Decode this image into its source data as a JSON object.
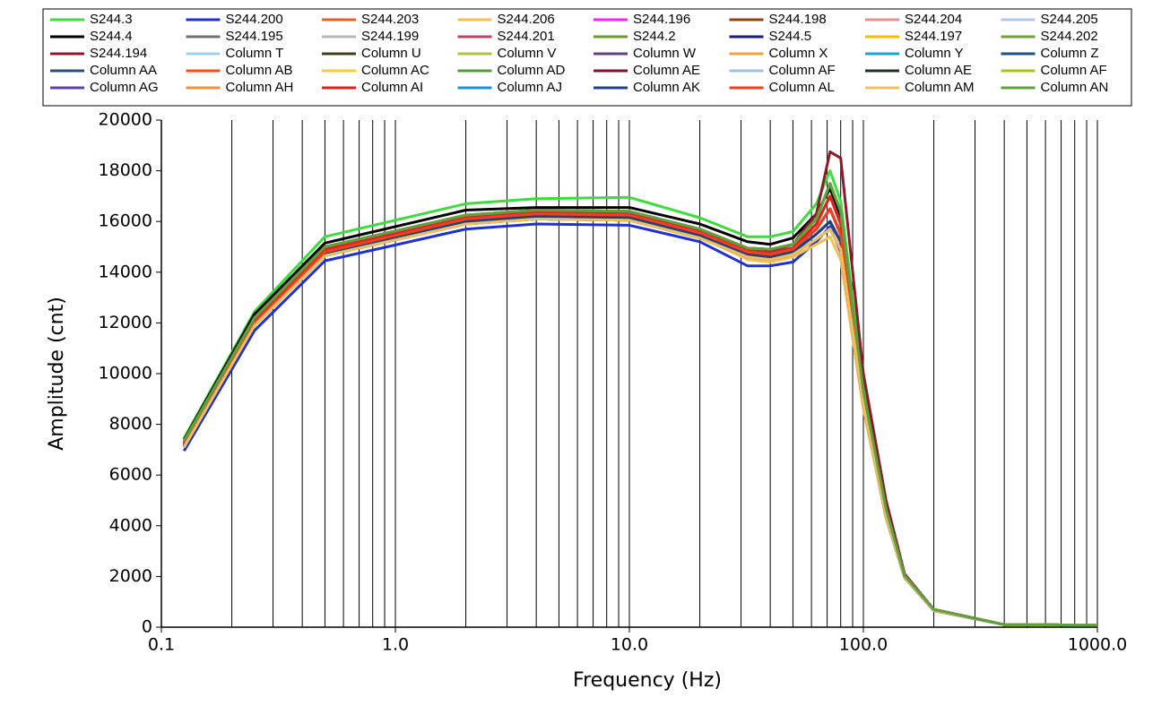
{
  "chart_data": {
    "type": "line",
    "x_label": "Frequency (Hz)",
    "y_label": "Amplitude  (cnt)",
    "log_x": true,
    "grid": true,
    "xlim": [
      0.1,
      1000
    ],
    "xticks": [
      0.1,
      {
        "value": 1,
        "label": "1.0"
      },
      {
        "value": 10,
        "label": "10.0"
      },
      {
        "value": 100,
        "label": "100.0"
      },
      {
        "value": 1000,
        "label": "1000.0"
      }
    ],
    "xgrid_minor": [
      0.2,
      0.3,
      0.4,
      0.5,
      0.6,
      0.7,
      0.8,
      0.9,
      2,
      3,
      4,
      5,
      6,
      7,
      8,
      9,
      20,
      30,
      40,
      50,
      60,
      70,
      80,
      90,
      200,
      300,
      400,
      500,
      600,
      700,
      800,
      900
    ],
    "ylim": [
      0,
      20000
    ],
    "yticks": [
      0,
      2000,
      4000,
      6000,
      8000,
      10000,
      12000,
      14000,
      16000,
      18000,
      20000
    ],
    "legend": "top",
    "x": [
      0.125,
      0.25,
      0.5,
      2,
      4,
      10,
      20,
      32,
      40,
      50,
      63,
      72,
      80,
      100,
      125,
      150,
      200,
      400,
      1000
    ],
    "series": [
      {
        "name": "S244.3",
        "color": "#3cdc3c",
        "values": [
          7450,
          12450,
          15400,
          16700,
          16900,
          16950,
          16150,
          15400,
          15400,
          15600,
          16700,
          18000,
          16800,
          9500,
          4800,
          2050,
          700,
          100,
          80
        ]
      },
      {
        "name": "S244.200",
        "color": "#2030d0",
        "values": [
          6950,
          11700,
          14450,
          15700,
          15900,
          15850,
          15200,
          14250,
          14250,
          14400,
          15200,
          15800,
          14800,
          8700,
          4300,
          1950,
          650,
          100,
          80
        ]
      },
      {
        "name": "S244.203",
        "color": "#e86020",
        "values": [
          7250,
          12100,
          14900,
          16150,
          16350,
          16300,
          15600,
          14850,
          14750,
          14950,
          15900,
          17000,
          15900,
          9100,
          4550,
          2000,
          700,
          100,
          80
        ]
      },
      {
        "name": "S244.206",
        "color": "#f5c050",
        "values": [
          7100,
          11900,
          14700,
          16000,
          16150,
          16100,
          15400,
          14500,
          14400,
          14600,
          15100,
          15400,
          14500,
          8600,
          4300,
          1950,
          650,
          100,
          80
        ]
      },
      {
        "name": "S244.196",
        "color": "#ff20ff",
        "values": [
          7200,
          12000,
          14800,
          16100,
          16300,
          16250,
          15550,
          14800,
          14700,
          14900,
          15700,
          16500,
          15500,
          9000,
          4500,
          2000,
          700,
          100,
          80
        ]
      },
      {
        "name": "S244.198",
        "color": "#8b4513",
        "values": [
          7150,
          11950,
          14750,
          16000,
          16200,
          16150,
          15450,
          14700,
          14600,
          14800,
          15500,
          16000,
          15200,
          8900,
          4450,
          1980,
          680,
          100,
          80
        ]
      },
      {
        "name": "S244.204",
        "color": "#e89090",
        "values": [
          7100,
          11900,
          14650,
          15900,
          16100,
          16050,
          15350,
          14600,
          14500,
          14700,
          15300,
          15700,
          14900,
          8800,
          4400,
          1970,
          670,
          100,
          80
        ]
      },
      {
        "name": "S244.205",
        "color": "#b0c8f0",
        "values": [
          7150,
          11950,
          14750,
          16000,
          16200,
          16150,
          15450,
          14700,
          14600,
          14800,
          15500,
          16000,
          15200,
          8900,
          4450,
          1980,
          680,
          100,
          80
        ]
      },
      {
        "name": "S244.4",
        "color": "#000000",
        "values": [
          7400,
          12350,
          15150,
          16450,
          16550,
          16550,
          15900,
          15200,
          15100,
          15350,
          16300,
          17300,
          16200,
          9300,
          4700,
          2050,
          700,
          100,
          80
        ]
      },
      {
        "name": "S244.195",
        "color": "#707070",
        "values": [
          7100,
          11900,
          14650,
          15900,
          16100,
          16050,
          15350,
          14600,
          14500,
          14700,
          15300,
          15700,
          14900,
          8800,
          4400,
          1970,
          670,
          100,
          80
        ]
      },
      {
        "name": "S244.199",
        "color": "#b8b8b8",
        "values": [
          7150,
          11950,
          14750,
          16000,
          16200,
          16150,
          15450,
          14700,
          14600,
          14800,
          15500,
          16000,
          15200,
          8900,
          4450,
          1980,
          680,
          100,
          80
        ]
      },
      {
        "name": "S244.201",
        "color": "#c04060",
        "values": [
          7200,
          12000,
          14800,
          16100,
          16300,
          16250,
          15550,
          14800,
          14700,
          14900,
          15700,
          16500,
          15500,
          9000,
          4500,
          2000,
          700,
          100,
          80
        ]
      },
      {
        "name": "S244.2",
        "color": "#6a9a30",
        "values": [
          7350,
          12200,
          15000,
          16250,
          16450,
          16400,
          15700,
          14950,
          14900,
          15100,
          16100,
          17500,
          16400,
          9300,
          4650,
          2030,
          700,
          100,
          80
        ]
      },
      {
        "name": "S244.5",
        "color": "#1a1a80",
        "values": [
          7100,
          11900,
          14650,
          15900,
          16100,
          16050,
          15350,
          14600,
          14500,
          14700,
          15300,
          15700,
          14900,
          8800,
          4400,
          1970,
          670,
          100,
          80
        ]
      },
      {
        "name": "S244.197",
        "color": "#f0c000",
        "values": [
          7250,
          12100,
          14900,
          16150,
          16350,
          16300,
          15600,
          14850,
          14750,
          14950,
          15900,
          17000,
          15900,
          9100,
          4550,
          2000,
          700,
          100,
          80
        ]
      },
      {
        "name": "S244.202",
        "color": "#70a040",
        "values": [
          7350,
          12200,
          15000,
          16250,
          16450,
          16400,
          15700,
          14950,
          14900,
          15100,
          16100,
          17500,
          16400,
          9300,
          4650,
          2030,
          700,
          100,
          80
        ]
      },
      {
        "name": "S244.194",
        "color": "#8b1a2a",
        "values": [
          7300,
          12100,
          15000,
          16200,
          16400,
          16350,
          15600,
          14900,
          14800,
          15100,
          16300,
          18750,
          18500,
          10000,
          5000,
          2100,
          700,
          100,
          80
        ]
      },
      {
        "name": "Column T",
        "color": "#a0d0f0",
        "values": [
          7150,
          11950,
          14750,
          16000,
          16200,
          16150,
          15450,
          14700,
          14600,
          14800,
          15500,
          16000,
          15200,
          8900,
          4450,
          1980,
          680,
          100,
          80
        ]
      },
      {
        "name": "Column U",
        "color": "#404020",
        "values": [
          7200,
          12000,
          14800,
          16100,
          16300,
          16250,
          15550,
          14800,
          14700,
          14900,
          15700,
          16500,
          15500,
          9000,
          4500,
          2000,
          700,
          100,
          80
        ]
      },
      {
        "name": "Column V",
        "color": "#b0c040",
        "values": [
          7250,
          12100,
          14900,
          16150,
          16350,
          16300,
          15600,
          14850,
          14750,
          14950,
          15900,
          17000,
          15900,
          9100,
          4550,
          2000,
          700,
          100,
          80
        ]
      },
      {
        "name": "Column W",
        "color": "#604080",
        "values": [
          7100,
          11900,
          14650,
          15900,
          16100,
          16050,
          15350,
          14600,
          14500,
          14700,
          15300,
          15700,
          14900,
          8800,
          4400,
          1970,
          670,
          100,
          80
        ]
      },
      {
        "name": "Column X",
        "color": "#f0a040",
        "values": [
          7150,
          11950,
          14750,
          16000,
          16200,
          16150,
          15450,
          14700,
          14600,
          14800,
          15500,
          16000,
          15200,
          8900,
          4450,
          1980,
          680,
          100,
          80
        ]
      },
      {
        "name": "Column Y",
        "color": "#20a0d0",
        "values": [
          7100,
          11900,
          14650,
          15900,
          16100,
          16050,
          15350,
          14600,
          14500,
          14700,
          15300,
          15700,
          14900,
          8800,
          4400,
          1970,
          670,
          100,
          80
        ]
      },
      {
        "name": "Column Z",
        "color": "#205080",
        "values": [
          7150,
          11950,
          14750,
          16000,
          16200,
          16150,
          15450,
          14700,
          14600,
          14800,
          15500,
          16000,
          15200,
          8900,
          4450,
          1980,
          680,
          100,
          80
        ]
      },
      {
        "name": "Column AA",
        "color": "#205080",
        "values": [
          7200,
          12000,
          14800,
          16100,
          16300,
          16250,
          15550,
          14800,
          14700,
          14900,
          15700,
          16500,
          15500,
          9000,
          4500,
          2000,
          700,
          100,
          80
        ]
      },
      {
        "name": "Column AB",
        "color": "#f05020",
        "values": [
          7250,
          12100,
          14900,
          16150,
          16350,
          16300,
          15600,
          14850,
          14750,
          14950,
          15900,
          17000,
          15900,
          9100,
          4550,
          2000,
          700,
          100,
          80
        ]
      },
      {
        "name": "Column AC",
        "color": "#f8c840",
        "values": [
          7100,
          11900,
          14650,
          15900,
          16100,
          16050,
          15350,
          14600,
          14500,
          14700,
          15300,
          15700,
          14900,
          8800,
          4400,
          1970,
          670,
          100,
          80
        ]
      },
      {
        "name": "Column AD",
        "color": "#50a030",
        "values": [
          7350,
          12200,
          15000,
          16250,
          16450,
          16400,
          15700,
          14950,
          14900,
          15100,
          16100,
          17500,
          16400,
          9300,
          4650,
          2030,
          700,
          100,
          80
        ]
      },
      {
        "name": "Column AE",
        "color": "#801030",
        "values": [
          7150,
          11950,
          14750,
          16000,
          16200,
          16150,
          15450,
          14700,
          14600,
          14800,
          15500,
          16000,
          15200,
          8900,
          4450,
          1980,
          680,
          100,
          80
        ]
      },
      {
        "name": "Column AF",
        "color": "#a0c0e0",
        "values": [
          7150,
          11950,
          14750,
          16000,
          16200,
          16150,
          15450,
          14700,
          14600,
          14800,
          15500,
          16000,
          15200,
          8900,
          4450,
          1980,
          680,
          100,
          80
        ]
      },
      {
        "name": "Column AE",
        "color": "#203020",
        "values": [
          7200,
          12000,
          14800,
          16100,
          16300,
          16250,
          15550,
          14800,
          14700,
          14900,
          15700,
          16500,
          15500,
          9000,
          4500,
          2000,
          700,
          100,
          80
        ]
      },
      {
        "name": "Column AF",
        "color": "#b0c020",
        "values": [
          7250,
          12100,
          14900,
          16150,
          16350,
          16300,
          15600,
          14850,
          14750,
          14950,
          15900,
          17000,
          15900,
          9100,
          4550,
          2000,
          700,
          100,
          80
        ]
      },
      {
        "name": "Column AG",
        "color": "#6040a0",
        "values": [
          7200,
          12000,
          14800,
          16100,
          16300,
          16250,
          15550,
          14800,
          14700,
          14900,
          15700,
          16500,
          15500,
          9000,
          4500,
          2000,
          700,
          100,
          80
        ]
      },
      {
        "name": "Column AH",
        "color": "#f09040",
        "values": [
          7250,
          12100,
          14900,
          16150,
          16350,
          16300,
          15600,
          14850,
          14750,
          14950,
          15900,
          17000,
          15900,
          9100,
          4550,
          2000,
          700,
          100,
          80
        ]
      },
      {
        "name": "Column AI",
        "color": "#e02020",
        "values": [
          7250,
          12100,
          14900,
          16150,
          16350,
          16300,
          15600,
          14850,
          14750,
          14950,
          15900,
          17000,
          15900,
          9100,
          4550,
          2000,
          700,
          100,
          80
        ]
      },
      {
        "name": "Column AJ",
        "color": "#2090d0",
        "values": [
          7100,
          11900,
          14650,
          15900,
          16100,
          16050,
          15350,
          14600,
          14500,
          14700,
          15300,
          15700,
          14900,
          8800,
          4400,
          1970,
          670,
          100,
          80
        ]
      },
      {
        "name": "Column AK",
        "color": "#204080",
        "values": [
          7150,
          11950,
          14750,
          16000,
          16200,
          16150,
          15450,
          14700,
          14600,
          14800,
          15500,
          16000,
          15200,
          8900,
          4450,
          1980,
          680,
          100,
          80
        ]
      },
      {
        "name": "Column AL",
        "color": "#f04020",
        "values": [
          7200,
          12000,
          14800,
          16100,
          16300,
          16250,
          15550,
          14800,
          14700,
          14900,
          15700,
          16500,
          15500,
          9000,
          4500,
          2000,
          700,
          100,
          80
        ]
      },
      {
        "name": "Column AM",
        "color": "#f0c060",
        "values": [
          7100,
          11900,
          14650,
          15900,
          16100,
          16050,
          15350,
          14600,
          14500,
          14700,
          15300,
          15700,
          14900,
          8800,
          4400,
          1970,
          670,
          100,
          80
        ]
      },
      {
        "name": "Column AN",
        "color": "#60a040",
        "values": [
          7350,
          12200,
          15000,
          16250,
          16450,
          16400,
          15700,
          14950,
          14900,
          15100,
          16100,
          17500,
          16400,
          9300,
          4650,
          2030,
          700,
          100,
          80
        ]
      }
    ]
  }
}
